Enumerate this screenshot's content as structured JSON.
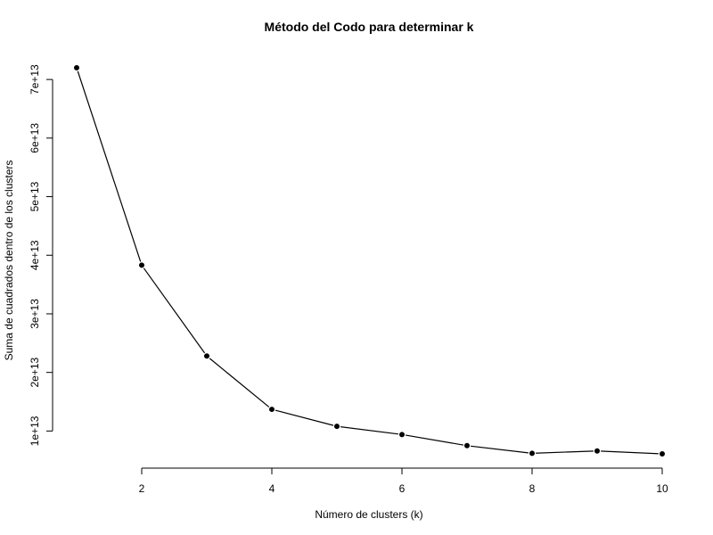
{
  "chart_data": {
    "type": "line",
    "title": "Método del Codo para determinar k",
    "xlabel": "Número de clusters (k)",
    "ylabel": "Suma de cuadrados dentro de los clusters",
    "x": [
      1,
      2,
      3,
      4,
      5,
      6,
      7,
      8,
      9,
      10
    ],
    "series": [
      {
        "values": [
          72000000000000.0,
          38300000000000.0,
          22800000000000.0,
          13700000000000.0,
          10800000000000.0,
          9400000000000.0,
          7500000000000.0,
          6200000000000.0,
          6600000000000.0,
          6100000000000.0
        ]
      }
    ],
    "xticks": [
      2,
      4,
      6,
      8,
      10
    ],
    "xtick_labels": [
      "2",
      "4",
      "6",
      "8",
      "10"
    ],
    "yticks": [
      10000000000000.0,
      20000000000000.0,
      30000000000000.0,
      40000000000000.0,
      50000000000000.0,
      60000000000000.0,
      70000000000000.0
    ],
    "ytick_labels": [
      "1e+13",
      "2e+13",
      "3e+13",
      "4e+13",
      "5e+13",
      "6e+13",
      "7e+13"
    ],
    "xlim": [
      1,
      10
    ],
    "ylim": [
      6100000000000.0,
      72000000000000.0
    ],
    "grid": false,
    "line_color": "#000000",
    "marker_color": "#000000"
  }
}
